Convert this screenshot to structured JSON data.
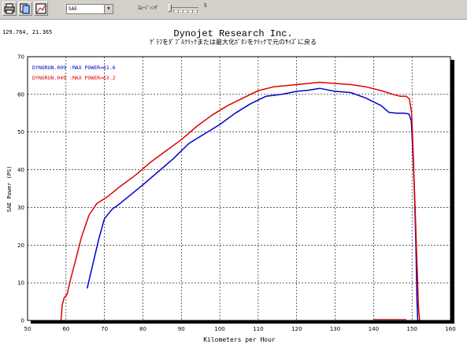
{
  "toolbar": {
    "buttons": [
      {
        "name": "print-icon"
      },
      {
        "name": "copy-icon"
      },
      {
        "name": "chart-settings-icon"
      }
    ],
    "correction_select": "SAE",
    "smoothing_label": "ｽﾑｰｼﾞｨﾝｸﾞ",
    "smoothing_value": "5",
    "smoothing_level": 0
  },
  "cursor_readout": "129.764,  21.365",
  "chart_data": {
    "type": "line",
    "title": "Dynojet  Research  Inc.",
    "subtitle": "ｸﾞﾗﾌをﾀﾞﾌﾞﾙｸﾘｯｸまたは最大化ﾎﾞﾀﾝをｸﾘｯｸで元のｻｲｽﾞに戻る",
    "xlabel": "Kilometers per Hour",
    "ylabel": "SAE Power (PS)",
    "xlim": [
      50,
      160
    ],
    "ylim": [
      0,
      70
    ],
    "xticks": [
      "50",
      "60",
      "70",
      "80",
      "90",
      "100",
      "110",
      "120",
      "130",
      "140",
      "150",
      "160"
    ],
    "yticks": [
      "0",
      "10",
      "20",
      "30",
      "40",
      "50",
      "60",
      "70"
    ],
    "grid": true,
    "legend_position": "top-left",
    "series": [
      {
        "name": "DYNORUN.009 :MAX POWER=61.6",
        "color": "#0000cc",
        "x": [
          65.5,
          67,
          68.5,
          70,
          72,
          74,
          77,
          80,
          84,
          88,
          92,
          96,
          100,
          104,
          108,
          112,
          116,
          120,
          123,
          126,
          130,
          134,
          138,
          142,
          144,
          146,
          148,
          149.2,
          149.8,
          150.2,
          150.6,
          151,
          151.3,
          151.5
        ],
        "y": [
          8.5,
          15,
          21.5,
          27,
          29.5,
          31,
          33.5,
          36,
          39.5,
          43,
          47,
          49.5,
          52,
          55,
          57.5,
          59.5,
          60,
          60.8,
          61.1,
          61.6,
          60.8,
          60.5,
          59,
          57,
          55.2,
          55,
          55,
          54.8,
          53,
          45,
          35,
          20,
          5,
          0
        ]
      },
      {
        "name": "DYNORUN.049 :MAX POWER=63.2",
        "color": "#e00000",
        "x": [
          58.7,
          59,
          59.5,
          60.3,
          61.2,
          62.5,
          64,
          66,
          68,
          71,
          74,
          78,
          82,
          86,
          90,
          94,
          98,
          102,
          106,
          110,
          114,
          118,
          122,
          126,
          130,
          134,
          138,
          142,
          145,
          147,
          148.5,
          149.3,
          149.9,
          150.3,
          150.8,
          151.3,
          151.7,
          152
        ],
        "y": [
          0,
          4,
          6,
          7,
          11,
          16,
          22,
          28,
          31,
          33,
          35.5,
          38.5,
          42,
          45,
          48,
          51.5,
          54.5,
          57,
          59,
          61,
          62,
          62.4,
          62.8,
          63.2,
          62.9,
          62.6,
          62,
          61,
          60,
          59.5,
          59.5,
          58.8,
          55,
          45,
          30,
          15,
          3,
          0
        ]
      }
    ]
  }
}
